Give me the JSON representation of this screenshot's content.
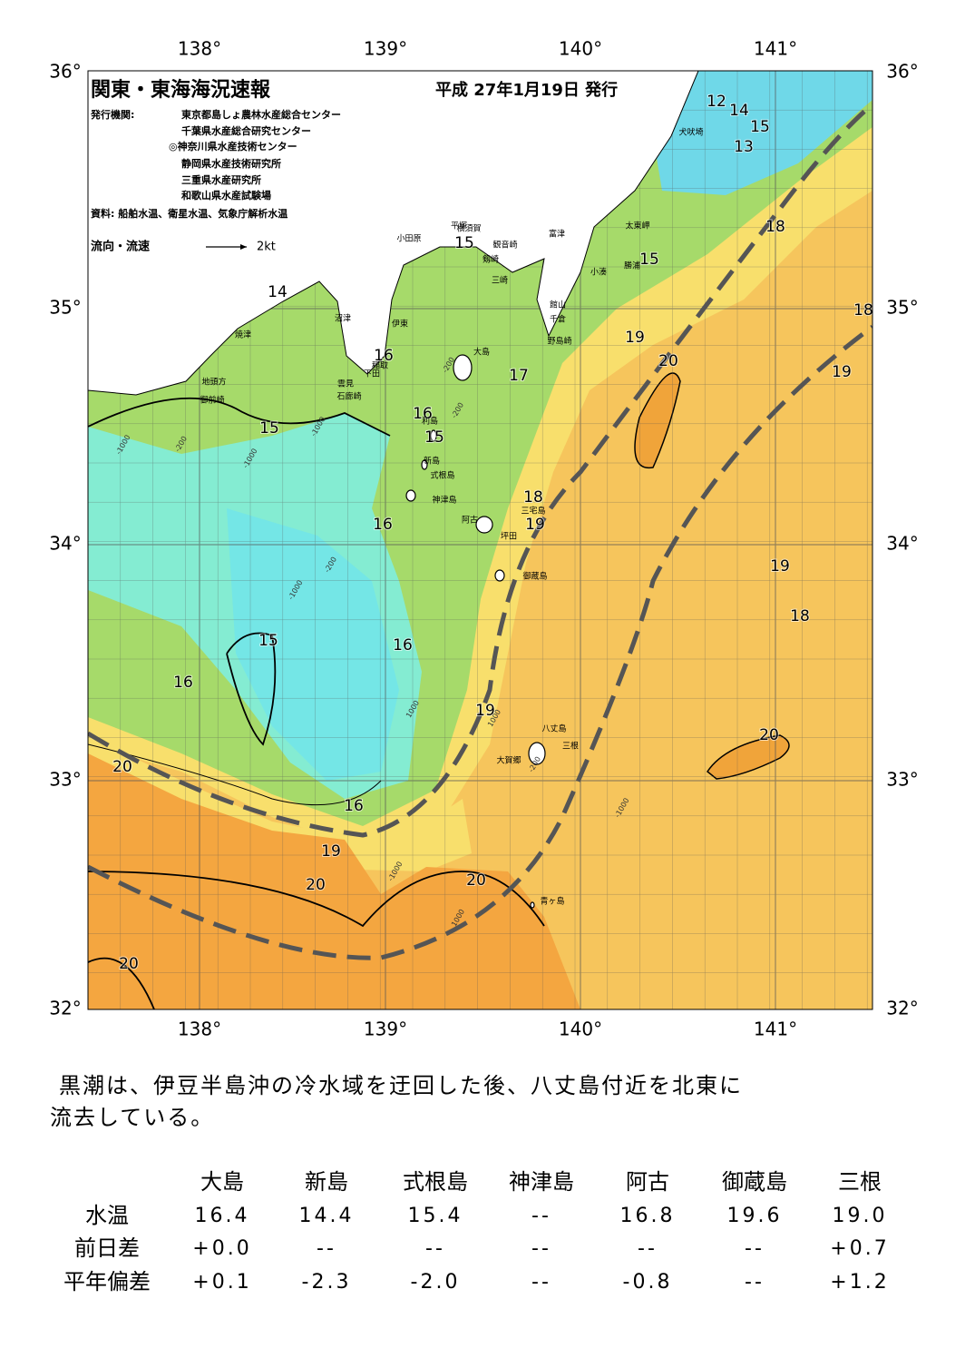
{
  "header": {
    "title": "関東・東海海況速報",
    "date": "平成 27年1月19日 発行",
    "publisher_label": "発行機関:",
    "publishers": [
      "東京都島しょ農林水産総合センター",
      "千葉県水産総合研究センター",
      "◎神奈川県水産技術センター",
      "静岡県水産技術研究所",
      "三重県水産研究所",
      "和歌山県水産試験場"
    ],
    "source": "資料: 船舶水温、衛星水温、気象庁解析水温",
    "legend": "流向・流速",
    "legend_scale": "2kt"
  },
  "map": {
    "lon_labels": [
      "138°",
      "139°",
      "140°",
      "141°"
    ],
    "lat_labels": [
      "36°",
      "35°",
      "34°",
      "33°",
      "32°"
    ],
    "contour_labels": [
      "12",
      "14",
      "15",
      "13",
      "18",
      "15",
      "15",
      "14",
      "18",
      "19",
      "16",
      "20",
      "17",
      "19",
      "16",
      "15",
      "15",
      "18",
      "19",
      "16",
      "19",
      "18",
      "15",
      "16",
      "16",
      "19",
      "20",
      "20",
      "16",
      "19",
      "20",
      "20",
      "20"
    ],
    "depth_labels": [
      "-1000",
      "-200",
      "-1000",
      "-200",
      "-200",
      "-1000",
      "-200",
      "-1000",
      "1000",
      "1000",
      "-200",
      "-1000",
      "1000",
      "-1000"
    ],
    "place_names": [
      "犬吠埼",
      "太東岬",
      "勝浦",
      "小湊",
      "富津",
      "横須賀",
      "平塚",
      "観音崎",
      "剱崎",
      "三崎",
      "小田原",
      "館山",
      "千倉",
      "野島崎",
      "沼津",
      "伊東",
      "焼津",
      "大島",
      "稲取",
      "下田",
      "雲見",
      "石廊崎",
      "地頭方",
      "御前崎",
      "利島",
      "新島",
      "式根島",
      "神津島",
      "三宅島",
      "阿古",
      "坪田",
      "御蔵島",
      "八丈島",
      "三根",
      "大賀郷",
      "青ヶ島"
    ]
  },
  "description": [
    "黒潮は、伊豆半島沖の冷水域を迂回した後、八丈島付近を北東に",
    "流去している。"
  ],
  "table": {
    "columns": [
      "大島",
      "新島",
      "式根島",
      "神津島",
      "阿古",
      "御蔵島",
      "三根"
    ],
    "rows": [
      {
        "label": "水温",
        "cells": [
          "16.4",
          "14.4",
          "15.4",
          "--",
          "16.8",
          "19.6",
          "19.0"
        ]
      },
      {
        "label": "前日差",
        "cells": [
          "+0.0",
          "--",
          "--",
          "--",
          "--",
          "--",
          "+0.7"
        ]
      },
      {
        "label": "平年偏差",
        "cells": [
          "+0.1",
          "-2.3",
          "-2.0",
          "--",
          "-0.8",
          "--",
          "+1.2"
        ]
      }
    ]
  }
}
